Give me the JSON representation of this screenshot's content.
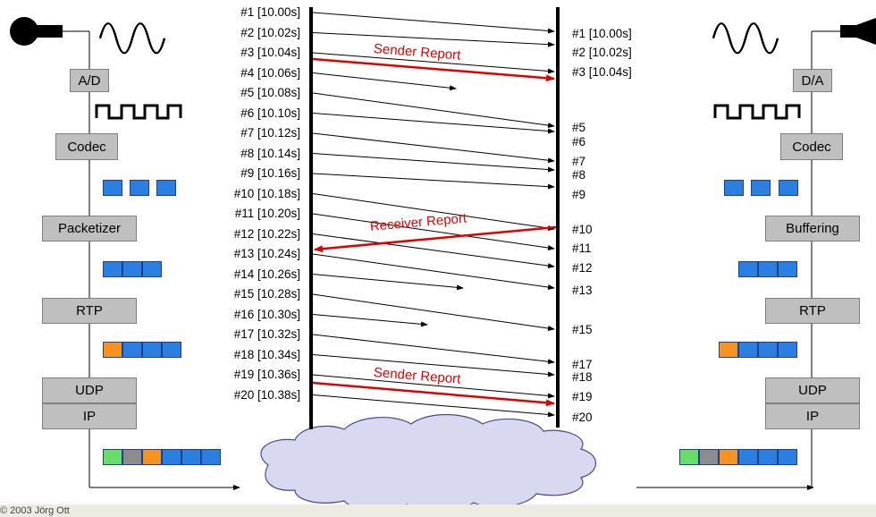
{
  "left_stack": {
    "ad": "A/D",
    "codec": "Codec",
    "packetizer": "Packetizer",
    "rtp": "RTP",
    "udp": "UDP",
    "ip": "IP"
  },
  "right_stack": {
    "da": "D/A",
    "codec": "Codec",
    "buffering": "Buffering",
    "rtp": "RTP",
    "udp": "UDP",
    "ip": "IP"
  },
  "sent_packets": [
    "#1 [10.00s]",
    "#2 [10.02s]",
    "#3 [10.04s]",
    "#4 [10.06s]",
    "#5 [10.08s]",
    "#6 [10.10s]",
    "#7 [10.12s]",
    "#8 [10.14s]",
    "#9 [10.16s]",
    "#10 [10.18s]",
    "#11 [10.20s]",
    "#12 [10.22s]",
    "#13 [10.24s]",
    "#14 [10.26s]",
    "#15 [10.28s]",
    "#16 [10.30s]",
    "#17 [10.32s]",
    "#18 [10.34s]",
    "#19 [10.36s]",
    "#20 [10.38s]"
  ],
  "received_packets": [
    "#1 [10.00s]",
    "#2 [10.02s]",
    "#3 [10.04s]",
    "#5",
    "#6",
    "#7",
    "#8",
    "#9",
    "#10",
    "#11",
    "#12",
    "#13",
    "#15",
    "#17",
    "#18",
    "#19",
    "#20"
  ],
  "reports": {
    "sender_report_1": "Sender Report",
    "receiver_report": "Receiver Report",
    "sender_report_2": "Sender Report"
  },
  "colors": {
    "payload": "#2b7fe0",
    "rtp_header": "#f7931e",
    "udp_header": "#8c8c8c",
    "ip_header": "#66dd66",
    "report_arrow": "#e00000",
    "box_fill": "#bfbfbf"
  },
  "footer": {
    "copyright": "© 2003 Jörg Ott"
  }
}
